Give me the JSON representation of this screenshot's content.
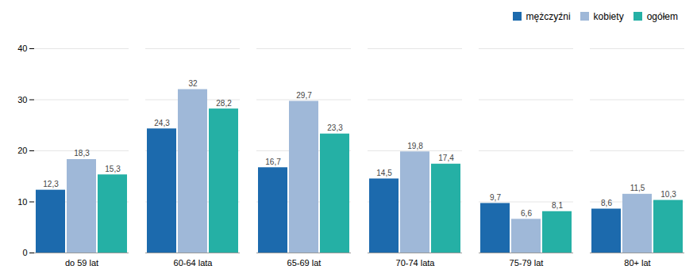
{
  "chart_data": {
    "type": "bar",
    "categories": [
      "do 59 lat",
      "60-64 lata",
      "65-69 lat",
      "70-74 lata",
      "75-79 lat",
      "80+ lat"
    ],
    "series": [
      {
        "name": "mężczyźni",
        "color": "#1c6aad",
        "values": [
          12.3,
          24.3,
          16.7,
          14.5,
          9.7,
          8.6
        ],
        "value_labels": [
          "12,3",
          "24,3",
          "16,7",
          "14,5",
          "9,7",
          "8,6"
        ]
      },
      {
        "name": "kobiety",
        "color": "#9fb8d8",
        "values": [
          18.3,
          32.0,
          29.7,
          19.8,
          6.6,
          11.5
        ],
        "value_labels": [
          "18,3",
          "32",
          "29,7",
          "19,8",
          "6,6",
          "11,5"
        ]
      },
      {
        "name": "ogółem",
        "color": "#25b0a5",
        "values": [
          15.3,
          28.2,
          23.3,
          17.4,
          8.1,
          10.3
        ],
        "value_labels": [
          "15,3",
          "28,2",
          "23,3",
          "17,4",
          "8,1",
          "10,3"
        ]
      }
    ],
    "ylim": [
      0,
      40
    ],
    "yticks": [
      0,
      10,
      20,
      30,
      40
    ],
    "grid": true,
    "legend": "upper right",
    "data_labels": true
  }
}
